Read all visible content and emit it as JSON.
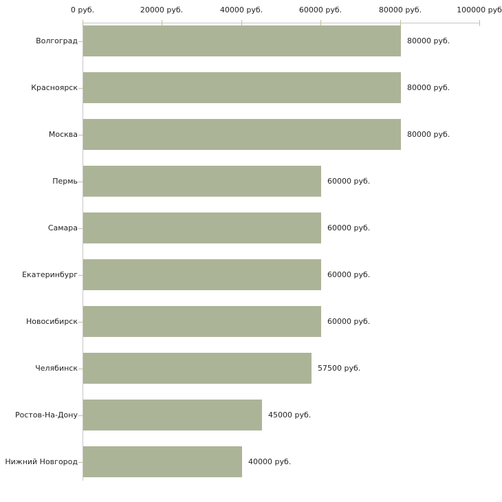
{
  "colors": {
    "bar_fill": "#acb498",
    "axis_line": "#c6c6c6",
    "tick_mark": "#c2bf94",
    "text": "#222222",
    "background": "#ffffff"
  },
  "chart_data": {
    "type": "bar",
    "orientation": "horizontal",
    "unit": "руб.",
    "grid": false,
    "legend": false,
    "categories": [
      "Волгоград",
      "Красноярск",
      "Москва",
      "Пермь",
      "Самара",
      "Екатеринбург",
      "Новосибирск",
      "Челябинск",
      "Ростов-На-Дону",
      "Нижний Новгород"
    ],
    "values": [
      80000,
      80000,
      80000,
      60000,
      60000,
      60000,
      60000,
      57500,
      45000,
      40000
    ],
    "value_labels": [
      "80000 руб.",
      "80000 руб.",
      "80000 руб.",
      "60000 руб.",
      "60000 руб.",
      "60000 руб.",
      "60000 руб.",
      "57500 руб.",
      "45000 руб.",
      "40000 руб."
    ],
    "x_axis": {
      "position": "top",
      "min": 0,
      "max": 100000,
      "tick_interval": 20000,
      "tick_values": [
        0,
        20000,
        40000,
        60000,
        80000,
        100000
      ],
      "tick_labels": [
        "0 руб.",
        "20000 руб.",
        "40000 руб.",
        "60000 руб.",
        "80000 руб.",
        "100000 руб"
      ]
    }
  }
}
